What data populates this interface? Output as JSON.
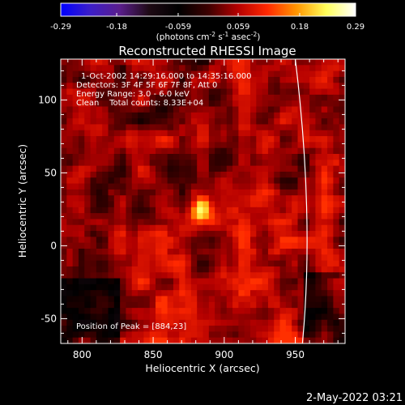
{
  "chart_data": {
    "type": "heatmap",
    "title": "Reconstructed RHESSI Image",
    "xlabel": "Heliocentric X (arcsec)",
    "ylabel": "Heliocentric Y (arcsec)",
    "xlim": [
      785,
      985
    ],
    "ylim": [
      -67,
      128
    ],
    "xticks": [
      800,
      850,
      900,
      950
    ],
    "yticks": [
      -50,
      0,
      50,
      100
    ],
    "colorbar": {
      "label_main": "(photons cm",
      "label_exp1": "-2",
      "label_mid1": " s",
      "label_exp2": "-1",
      "label_mid2": " asec",
      "label_exp3": "-2",
      "label_end": ")",
      "range": [
        -0.29,
        0.29
      ],
      "ticks": [
        "-0.29",
        "-0.18",
        "-0.059",
        "0.059",
        "0.18",
        "0.29"
      ],
      "colormap_stops": [
        "#0000ff",
        "#3c1ec8",
        "#5a1e8c",
        "#1e0a14",
        "#000000",
        "#3c0000",
        "#b40000",
        "#ff2800",
        "#ff9600",
        "#ffff5a",
        "#ffffff"
      ]
    },
    "annotations": [
      "1-Oct-2002 14:29:16.000 to 14:35:16.000",
      "Detectors: 3F 4F 5F 6F 7F 8F, Att 0",
      "Energy Range: 3.0 - 6.0 keV",
      "Clean    Total counts: 8.33E+04",
      "Position of Peak = [884,23]"
    ],
    "peak": {
      "x": 884,
      "y": 23,
      "value": 0.29
    },
    "background": {
      "min": -0.12,
      "max": 0.12
    },
    "limb_arc": {
      "points": [
        [
          950,
          128
        ],
        [
          958,
          20
        ],
        [
          955,
          -67
        ]
      ]
    },
    "footer": "2-May-2022 03:21"
  }
}
